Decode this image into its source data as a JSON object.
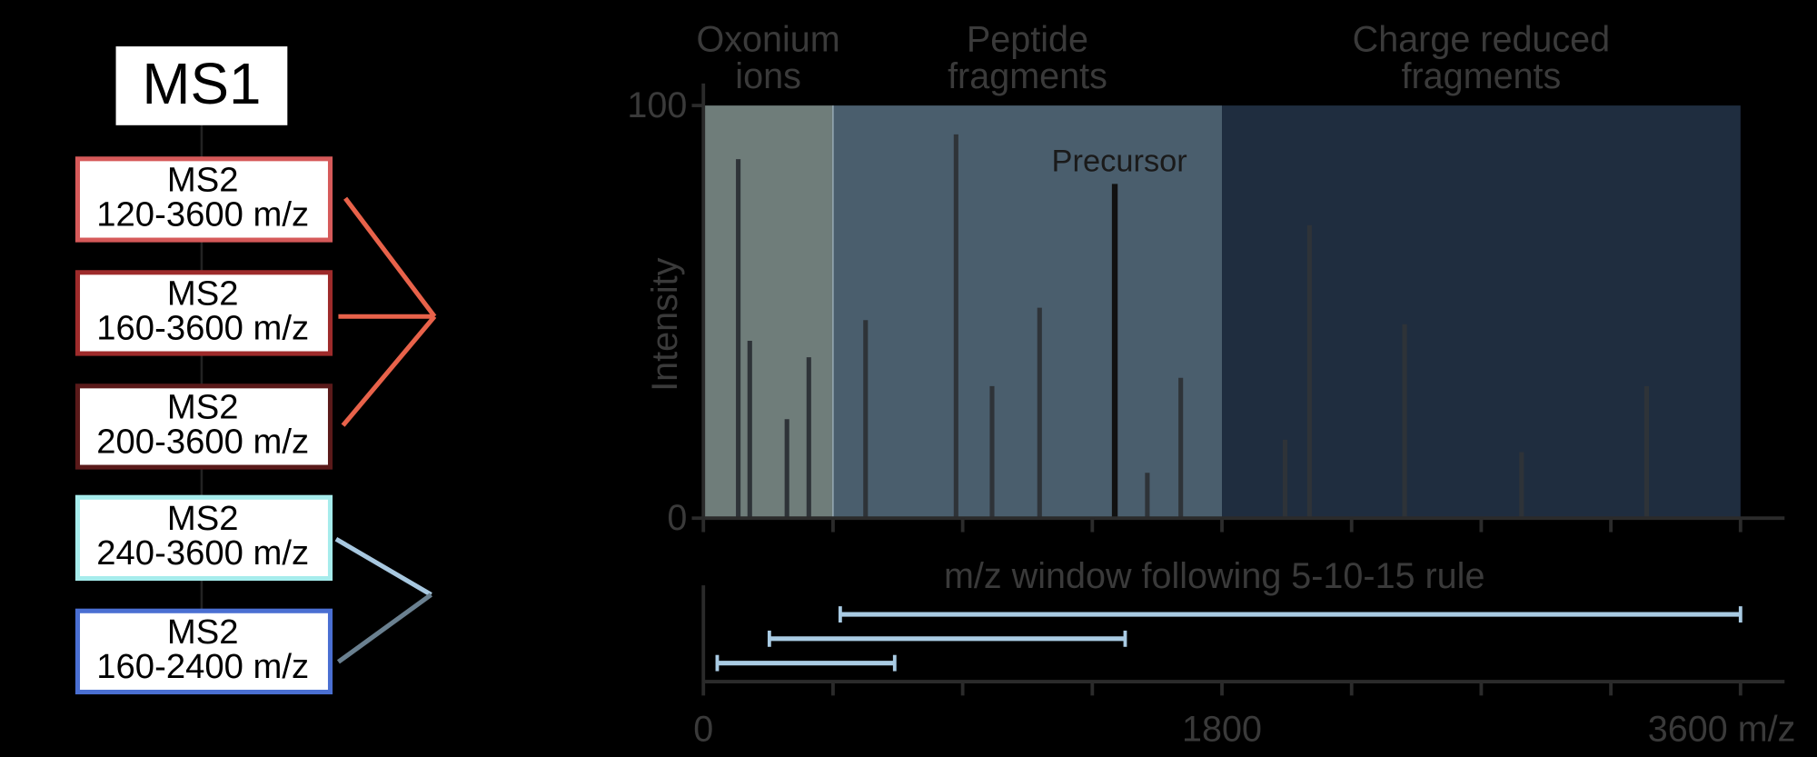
{
  "ms1": "MS1",
  "ms2_boxes": [
    {
      "line1": "MS2",
      "line2": "120-3600 m/z",
      "color": "#d65a5a"
    },
    {
      "line1": "MS2",
      "line2": "160-3600 m/z",
      "color": "#9e2b2b"
    },
    {
      "line1": "MS2",
      "line2": "200-3600 m/z",
      "color": "#5a1a1a"
    },
    {
      "line1": "MS2",
      "line2": "240-3600 m/z",
      "color": "#a6ecec"
    },
    {
      "line1": "MS2",
      "line2": "160-2400 m/z",
      "color": "#4a6fd2"
    }
  ],
  "chart_data": {
    "type": "stem",
    "y_label": "Intensity",
    "regions": [
      {
        "label_lines": [
          "Oxonium",
          "ions"
        ],
        "xrange": [
          0,
          450
        ],
        "color": "#6f7d7a"
      },
      {
        "label_lines": [
          "Peptide",
          "fragments"
        ],
        "xrange": [
          450,
          1800
        ],
        "color": "#4a5e6d"
      },
      {
        "label_lines": [
          "Charge reduced",
          "fragments"
        ],
        "xrange": [
          1800,
          3600
        ],
        "color": "#1f2d3f"
      }
    ],
    "x": [
      121,
      161,
      290,
      366,
      563,
      877,
      1002,
      1167,
      1541,
      1657,
      2019,
      2104,
      2434,
      2840,
      3274
    ],
    "values": [
      87,
      43,
      24,
      39,
      48,
      93,
      32,
      51,
      11,
      34,
      19,
      71,
      47,
      16,
      32
    ],
    "color": "#2e3338",
    "precursor": {
      "label": "Precursor",
      "x": 1428,
      "value": 81,
      "color": "#111111"
    },
    "xlim": [
      0,
      3600
    ],
    "ylim": [
      0,
      100
    ],
    "xticks": [
      0,
      1800,
      {
        "value": 3600,
        "label": "3600 m/z"
      }
    ],
    "xminor_ticks": [
      450,
      900,
      1350,
      2250,
      2700,
      3150
    ],
    "yticks": [
      0,
      100
    ],
    "windows": {
      "title": "m/z window following 5-10-15 rule",
      "color": "#a9cbe3",
      "ranges": [
        [
          475,
          3600
        ],
        [
          229,
          1464
        ],
        [
          48,
          664
        ]
      ]
    }
  }
}
